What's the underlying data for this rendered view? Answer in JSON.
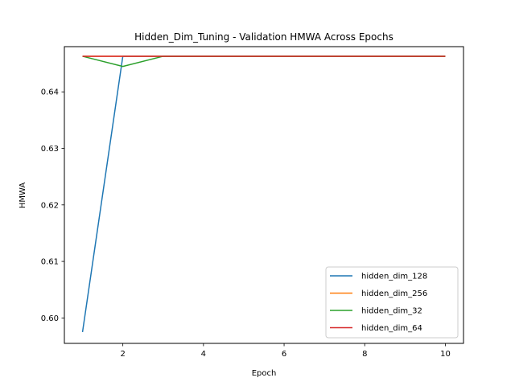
{
  "chart_data": {
    "type": "line",
    "title": "Hidden_Dim_Tuning - Validation HMWA Across Epochs",
    "xlabel": "Epoch",
    "ylabel": "HMWA",
    "x": [
      1,
      2,
      3,
      4,
      5,
      6,
      7,
      8,
      9,
      10
    ],
    "xlim": [
      0.55,
      10.45
    ],
    "ylim": [
      0.5955,
      0.648
    ],
    "xticks": [
      2,
      4,
      6,
      8,
      10
    ],
    "yticks": [
      0.6,
      0.61,
      0.62,
      0.63,
      0.64
    ],
    "ytick_labels": [
      "0.60",
      "0.61",
      "0.62",
      "0.63",
      "0.64"
    ],
    "grid": false,
    "legend_position": "lower-right",
    "series": [
      {
        "name": "hidden_dim_128",
        "color": "#1f77b4",
        "values": [
          0.5975,
          0.6463,
          0.6463,
          0.6463,
          0.6463,
          0.6463,
          0.6463,
          0.6463,
          0.6463,
          0.6463
        ]
      },
      {
        "name": "hidden_dim_256",
        "color": "#ff7f0e",
        "values": [
          0.6463,
          0.6463,
          0.6463,
          0.6463,
          0.6463,
          0.6463,
          0.6463,
          0.6463,
          0.6463,
          0.6463
        ]
      },
      {
        "name": "hidden_dim_32",
        "color": "#2ca02c",
        "values": [
          0.6463,
          0.6445,
          0.6463,
          0.6463,
          0.6463,
          0.6463,
          0.6463,
          0.6463,
          0.6463,
          0.6463
        ]
      },
      {
        "name": "hidden_dim_64",
        "color": "#d62728",
        "values": [
          0.6463,
          0.6463,
          0.6463,
          0.6463,
          0.6463,
          0.6463,
          0.6463,
          0.6463,
          0.6463,
          0.6463
        ]
      }
    ]
  }
}
